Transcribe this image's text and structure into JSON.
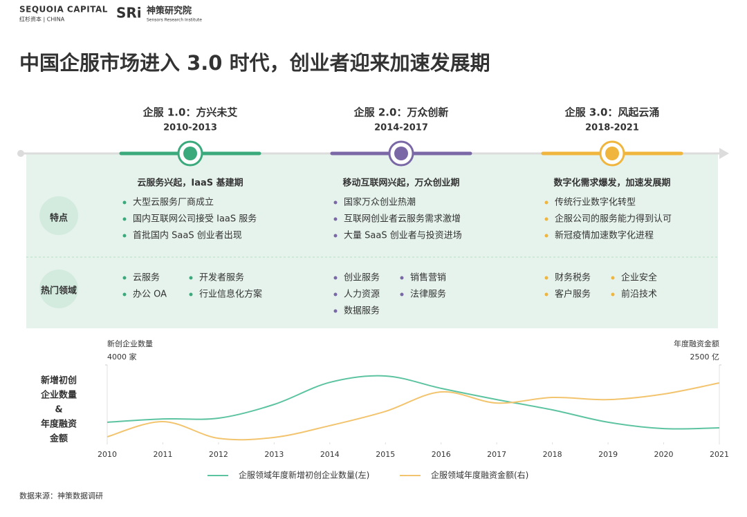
{
  "header": {
    "logo1": "SEQUOIA CAPITAL",
    "logo1_sub": "红杉资本 | CHINA",
    "logo2_mark": "SRi",
    "logo2": "神策研究院",
    "logo2_sub": "Sensors Research Institute",
    "title": "中国企服市场进入 3.0 时代，创业者迎来加速发展期"
  },
  "rows": [
    "特点",
    "热门领域"
  ],
  "eras": [
    {
      "title": "企服 1.0：方兴未艾",
      "years": "2010-2013",
      "color": "#3aaa7c",
      "heading": "云服务兴起，IaaS 基建期",
      "features": [
        "大型云服务厂商成立",
        "国内互联网公司接受 IaaS 服务",
        "首批国内 SaaS 创业者出现"
      ],
      "domains": [
        "云服务",
        "开发者服务",
        "办公 OA",
        "行业信息化方案"
      ]
    },
    {
      "title": "企服 2.0：万众创新",
      "years": "2014-2017",
      "color": "#7a68a6",
      "heading": "移动互联网兴起，万众创业期",
      "features": [
        "国家万众创业热潮",
        "互联网创业者云服务需求激增",
        "大量 SaaS 创业者与投资进场"
      ],
      "domains": [
        "创业服务",
        "销售营销",
        "人力资源",
        "法律服务",
        "数据服务"
      ]
    },
    {
      "title": "企服 3.0：风起云涌",
      "years": "2018-2021",
      "color": "#f0b53c",
      "heading": "数字化需求爆发，加速发展期",
      "features": [
        "传统行业数字化转型",
        "企服公司的服务能力得到认可",
        "新冠疫情加速数字化进程"
      ],
      "domains": [
        "财务税务",
        "企业安全",
        "客户服务",
        "前沿技术"
      ]
    }
  ],
  "chart_data": {
    "type": "line",
    "y_title": [
      "新增初创",
      "企业数量",
      "&",
      "年度融资",
      "金额"
    ],
    "y_axis_label": "新创企业数量",
    "y2_axis_label": "年度融资金额",
    "x": [
      2010,
      2011,
      2012,
      2013,
      2014,
      2015,
      2016,
      2017,
      2018,
      2019,
      2020,
      2021
    ],
    "xlim": [
      2010,
      2021
    ],
    "xticks": [
      2010,
      2011,
      2012,
      2013,
      2014,
      2015,
      2016,
      2017,
      2018,
      2019,
      2020,
      2021
    ],
    "ylim": [
      0,
      4000
    ],
    "yticks": [
      {
        "value": 4000,
        "label": "4000 家"
      }
    ],
    "y2lim": [
      0,
      2500
    ],
    "y2ticks": [
      {
        "value": 2500,
        "label": "2500 亿"
      }
    ],
    "series": [
      {
        "name": "企服领域年度新增初创企业数量(左)",
        "color": "#5cc3a0",
        "values": [
          1040,
          1210,
          1250,
          1960,
          3100,
          3430,
          2790,
          2210,
          1680,
          1040,
          710,
          750
        ]
      },
      {
        "name": "企服领域年度融资金额(右)",
        "color": "#f3c46e",
        "axis": "y2",
        "values": [
          180,
          670,
          130,
          160,
          540,
          1000,
          1630,
          1270,
          1450,
          1380,
          1560,
          1920
        ]
      }
    ]
  },
  "source": "数据来源：神策数据调研"
}
